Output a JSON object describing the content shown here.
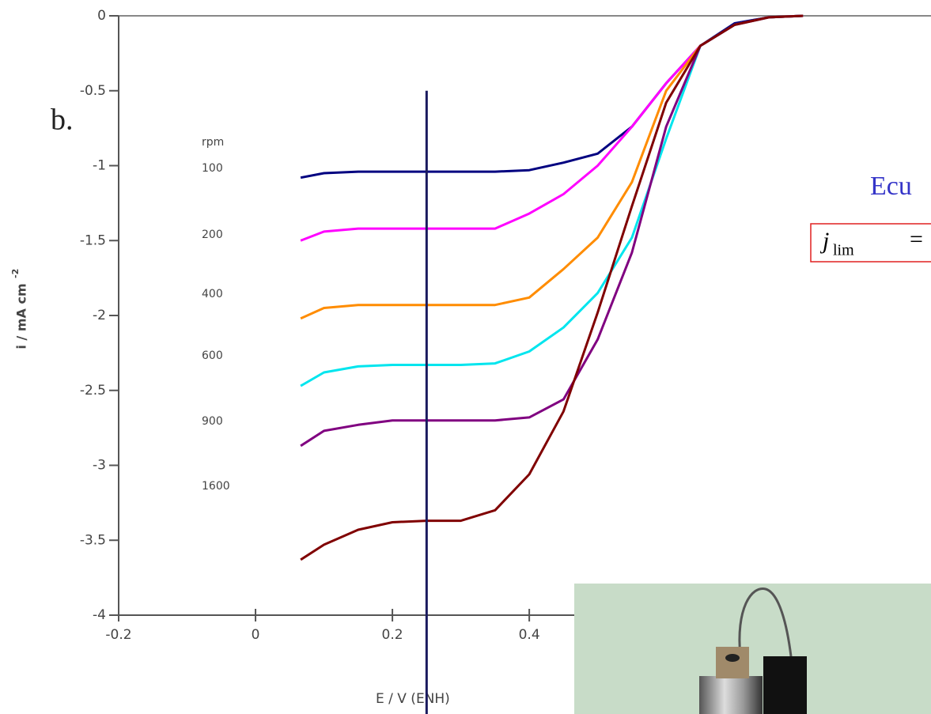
{
  "chart_data": {
    "type": "line",
    "panel_label": "b.",
    "legend_title": "rpm",
    "x_label": "E  / V (ENH)",
    "y_label": "i / mA cm",
    "y_label_exponent": "-2",
    "x": [
      0.066,
      0.1,
      0.15,
      0.2,
      0.25,
      0.3,
      0.35,
      0.4,
      0.45,
      0.5,
      0.55,
      0.6,
      0.65,
      0.7,
      0.75,
      0.8
    ],
    "series": [
      {
        "name": "100",
        "color": "#000080",
        "values": [
          -1.08,
          -1.05,
          -1.04,
          -1.04,
          -1.04,
          -1.04,
          -1.04,
          -1.03,
          -0.98,
          -0.92,
          -0.74,
          -0.45,
          -0.2,
          -0.05,
          -0.01,
          0
        ]
      },
      {
        "name": "200",
        "color": "#ff00ff",
        "values": [
          -1.5,
          -1.44,
          -1.42,
          -1.42,
          -1.42,
          -1.42,
          -1.42,
          -1.32,
          -1.19,
          -1.0,
          -0.74,
          -0.45,
          -0.2,
          -0.06,
          -0.01,
          0
        ]
      },
      {
        "name": "400",
        "color": "#ff8c00",
        "values": [
          -2.02,
          -1.95,
          -1.93,
          -1.93,
          -1.93,
          -1.93,
          -1.93,
          -1.88,
          -1.69,
          -1.48,
          -1.11,
          -0.5,
          -0.2,
          -0.06,
          -0.01,
          0
        ]
      },
      {
        "name": "600",
        "color": "#00e5ee",
        "values": [
          -2.47,
          -2.38,
          -2.34,
          -2.33,
          -2.33,
          -2.33,
          -2.32,
          -2.24,
          -2.08,
          -1.85,
          -1.48,
          -0.82,
          -0.2,
          -0.06,
          -0.01,
          0
        ]
      },
      {
        "name": "900",
        "color": "#800080",
        "values": [
          -2.87,
          -2.77,
          -2.73,
          -2.7,
          -2.7,
          -2.7,
          -2.7,
          -2.68,
          -2.56,
          -2.16,
          -1.58,
          -0.74,
          -0.2,
          -0.06,
          -0.01,
          0
        ]
      },
      {
        "name": "1600",
        "color": "#800000",
        "values": [
          -3.63,
          -3.53,
          -3.43,
          -3.38,
          -3.37,
          -3.37,
          -3.3,
          -3.06,
          -2.64,
          -1.98,
          -1.27,
          -0.58,
          -0.2,
          -0.06,
          -0.01,
          0
        ]
      }
    ],
    "xlim": [
      -0.2,
      0.987
    ],
    "ylim": [
      -4,
      0
    ],
    "xticks": [
      -0.2,
      0,
      0.2,
      0.4
    ],
    "yticks": [
      0,
      -0.5,
      -1,
      -1.5,
      -2,
      -2.5,
      -3,
      -3.5,
      -4
    ],
    "vline": {
      "x": 0.25,
      "y_top": -0.5,
      "color": "#1a1a5e"
    },
    "annotations": {
      "heading": "Ecu",
      "symbol": "j",
      "subscript": "lim",
      "operator": "="
    }
  }
}
